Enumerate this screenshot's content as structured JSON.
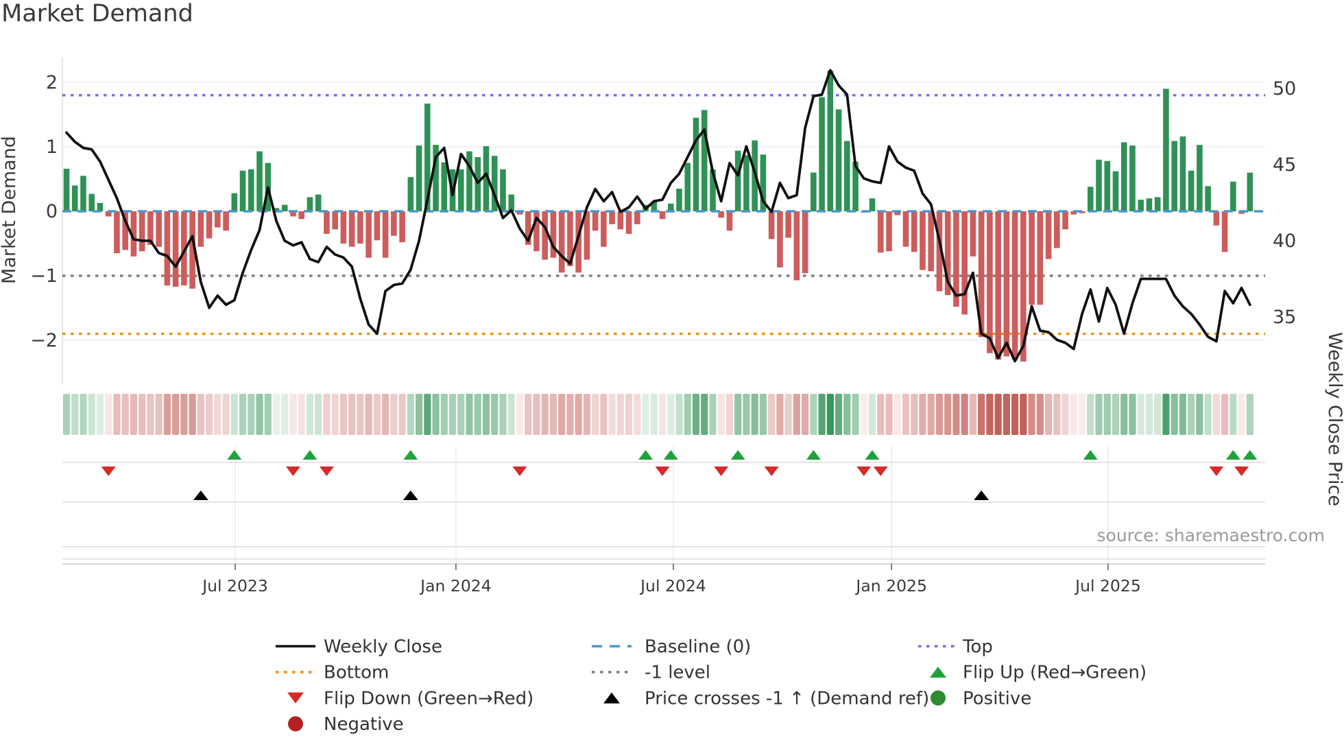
{
  "title": "Market Demand",
  "source_note": "source: sharemaestro.com",
  "axes": {
    "left_label": "Market Demand",
    "right_label": "Weekly Close Price",
    "left_ticks": [
      "2",
      "1",
      "0",
      "−1",
      "−2"
    ],
    "left_tick_values": [
      2,
      1,
      0,
      -1,
      -2
    ],
    "right_ticks": [
      "50",
      "45",
      "40",
      "35"
    ],
    "right_tick_values": [
      50,
      45,
      40,
      35
    ],
    "x_ticks": [
      {
        "label": "Jul 2023",
        "week": 20.1
      },
      {
        "label": "Jan 2024",
        "week": 46.4
      },
      {
        "label": "Jul 2024",
        "week": 72.3
      },
      {
        "label": "Jan 2025",
        "week": 98.3
      },
      {
        "label": "Jul 2025",
        "week": 124.1
      }
    ]
  },
  "chart_data": {
    "type": "bar+line",
    "x_unit": "weekly observations, ~Feb 2023 to ~Nov 2025",
    "n_weeks": 142,
    "title": "Market Demand",
    "ylabel_left": "Market Demand",
    "ylabel_right": "Weekly Close Price",
    "ylim_left": [
      -2.6,
      2.37
    ],
    "ylim_right": [
      30.9,
      52.0
    ],
    "grid_levels_left": [
      2,
      1,
      0,
      -1,
      -2
    ],
    "reference_lines": {
      "baseline": 0,
      "top": 1.8,
      "minus_one_level": -1,
      "bottom": -1.9
    },
    "series": [
      {
        "name": "Market Demand",
        "type": "bar",
        "axis": "left",
        "values": [
          0.66,
          0.4,
          0.55,
          0.27,
          0.13,
          -0.08,
          -0.65,
          -0.6,
          -0.7,
          -0.62,
          -0.52,
          -0.55,
          -1.15,
          -1.17,
          -1.15,
          -1.2,
          -0.55,
          -0.42,
          -0.25,
          -0.3,
          0.28,
          0.63,
          0.65,
          0.93,
          0.75,
          0.05,
          0.1,
          -0.08,
          -0.12,
          0.22,
          0.26,
          -0.35,
          -0.28,
          -0.5,
          -0.55,
          -0.5,
          -0.72,
          -0.45,
          -0.72,
          -0.38,
          -0.48,
          0.53,
          1.02,
          1.67,
          1.03,
          0.76,
          0.65,
          0.65,
          0.93,
          0.84,
          1.01,
          0.86,
          0.65,
          0.26,
          -0.05,
          -0.52,
          -0.62,
          -0.75,
          -0.72,
          -0.95,
          -0.85,
          -0.95,
          -0.75,
          -0.3,
          -0.55,
          -0.2,
          -0.28,
          -0.35,
          -0.2,
          0.1,
          0.15,
          -0.12,
          0.12,
          0.35,
          0.75,
          1.45,
          1.57,
          0.65,
          -0.1,
          -0.3,
          0.94,
          0.87,
          1.1,
          0.88,
          -0.43,
          -0.87,
          -0.41,
          -1.07,
          -0.96,
          0.6,
          1.77,
          2.18,
          1.58,
          1.09,
          0.77,
          -0.02,
          0.2,
          -0.64,
          -0.62,
          -0.06,
          -0.55,
          -0.63,
          -0.91,
          -0.93,
          -1.24,
          -1.3,
          -1.48,
          -1.6,
          -0.7,
          -1.95,
          -2.2,
          -2.3,
          -2.25,
          -2.3,
          -2.33,
          -1.45,
          -1.45,
          -0.74,
          -0.57,
          -0.28,
          -0.05,
          -0.03,
          0.38,
          0.8,
          0.78,
          0.62,
          1.07,
          1.02,
          0.18,
          0.2,
          0.22,
          1.9,
          1.09,
          1.16,
          0.63,
          1.03,
          0.39,
          -0.22,
          -0.63,
          0.46,
          -0.04,
          0.6
        ]
      },
      {
        "name": "Weekly Close",
        "type": "line",
        "axis": "right",
        "values": [
          47.1,
          46.5,
          46.1,
          46.0,
          45.2,
          44.0,
          42.8,
          41.3,
          40.1,
          40.0,
          40.0,
          39.2,
          39.0,
          38.3,
          39.3,
          40.3,
          37.3,
          35.6,
          36.4,
          35.8,
          36.1,
          37.9,
          39.4,
          40.7,
          43.5,
          41.3,
          40.0,
          39.7,
          39.9,
          38.8,
          38.6,
          39.6,
          39.1,
          38.9,
          38.3,
          36.2,
          34.5,
          33.9,
          36.7,
          37.1,
          37.2,
          38.1,
          40.0,
          42.7,
          45.5,
          46.1,
          43.0,
          45.7,
          44.9,
          43.8,
          44.4,
          43.0,
          41.5,
          42.0,
          40.8,
          40.0,
          41.5,
          40.9,
          39.6,
          39.0,
          38.5,
          40.3,
          42.2,
          43.4,
          42.6,
          43.2,
          41.9,
          42.2,
          42.9,
          42.1,
          42.6,
          42.7,
          43.8,
          44.4,
          45.5,
          46.6,
          47.3,
          44.5,
          42.6,
          45.1,
          44.3,
          46.2,
          44.5,
          42.6,
          41.9,
          43.8,
          42.8,
          43.0,
          47.4,
          49.5,
          49.6,
          51.2,
          50.2,
          49.6,
          44.9,
          44.1,
          43.9,
          43.8,
          46.2,
          45.2,
          44.8,
          44.6,
          43.1,
          42.4,
          40.0,
          37.3,
          36.4,
          36.5,
          37.9,
          33.9,
          33.6,
          32.3,
          33.3,
          32.1,
          33.1,
          35.7,
          34.1,
          34.0,
          33.5,
          33.3,
          32.9,
          35.2,
          36.8,
          34.7,
          36.9,
          35.8,
          33.9,
          35.9,
          37.5,
          37.5,
          37.5,
          37.5,
          36.4,
          35.7,
          35.2,
          34.5,
          33.7,
          33.4,
          36.7,
          35.9,
          36.9,
          35.8
        ]
      }
    ],
    "events": {
      "flip_up_weeks": [
        20,
        29,
        41,
        69,
        72,
        80,
        89,
        96,
        122,
        139,
        141
      ],
      "flip_down_weeks": [
        5,
        27,
        31,
        54,
        71,
        78,
        84,
        95,
        97,
        137,
        140
      ],
      "price_cross_minus1_weeks": [
        16,
        41,
        109
      ]
    },
    "heatmap": {
      "description": "weekly strip below chart, red-to-green colormap of Market Demand bar values",
      "source_series": "Market Demand",
      "abs_scale_max": 2.4
    },
    "legend_position": "bottom, 3 columns"
  },
  "legend": {
    "columns": [
      {
        "items": [
          {
            "marker": "solid-line-black",
            "label": "Weekly Close"
          },
          {
            "marker": "dotted-orange",
            "label": "Bottom"
          },
          {
            "marker": "triangle-down-red",
            "label": "Flip Down (Green→Red)"
          },
          {
            "marker": "circle-darkred",
            "label": "Negative"
          }
        ]
      },
      {
        "items": [
          {
            "marker": "dashed-blue",
            "label": "Baseline (0)"
          },
          {
            "marker": "dotted-gray",
            "label": "-1 level"
          },
          {
            "marker": "triangle-up-black",
            "label": "Price crosses -1 ↑ (Demand ref)"
          }
        ]
      },
      {
        "items": [
          {
            "marker": "dotted-purple",
            "label": "Top"
          },
          {
            "marker": "triangle-up-green",
            "label": "Flip Up (Red→Green)"
          },
          {
            "marker": "circle-green",
            "label": "Positive"
          }
        ]
      }
    ]
  },
  "colors": {
    "positive_bar": "#2f9156",
    "negative_bar": "#cd5c5c",
    "price_line": "#111111",
    "baseline": "#4a97c9",
    "top_line": "#7b68ee",
    "minus_one_line": "#808080",
    "bottom_line": "#ef8e0e",
    "flip_up": "#1fa23c",
    "flip_down": "#d62b28",
    "price_cross": "#000000",
    "positive_dot": "#2e8b2e",
    "negative_dot": "#b22222",
    "heat_pos_max": "#2c8e50",
    "heat_neg_max": "#c05c56",
    "grid": "#e9e9ef",
    "spine": "#d9d9e0",
    "panel_line": "#d8d8d8",
    "panel_spine": "#c8c8c8",
    "axis_text": "#3a3a3a",
    "legend_text": "#333333",
    "source_text": "#9a9a9a"
  }
}
